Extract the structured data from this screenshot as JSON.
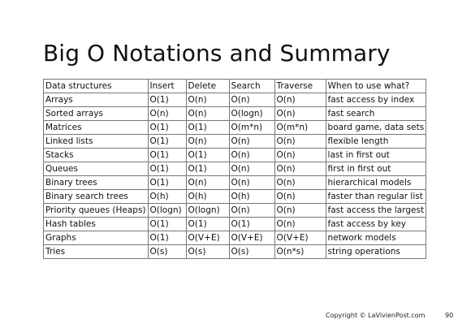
{
  "slide": {
    "title": "Big O Notations and Summary",
    "copyright": "Copyright © LaVivienPost.com",
    "page_number": "90"
  },
  "table": {
    "headers": [
      "Data structures",
      "Insert",
      "Delete",
      "Search",
      "Traverse",
      "When to use what?"
    ],
    "rows": [
      [
        "Arrays",
        "O(1)",
        "O(n)",
        "O(n)",
        "O(n)",
        "fast access by index"
      ],
      [
        "Sorted arrays",
        "O(n)",
        "O(n)",
        "O(logn)",
        "O(n)",
        "fast search"
      ],
      [
        "Matrices",
        "O(1)",
        "O(1)",
        "O(m*n)",
        "O(m*n)",
        "board game, data sets"
      ],
      [
        "Linked lists",
        "O(1)",
        "O(n)",
        "O(n)",
        "O(n)",
        "flexible length"
      ],
      [
        "Stacks",
        "O(1)",
        "O(1)",
        "O(n)",
        "O(n)",
        "last in first out"
      ],
      [
        "Queues",
        "O(1)",
        "O(1)",
        "O(n)",
        "O(n)",
        "first in first out"
      ],
      [
        "Binary trees",
        "O(1)",
        "O(n)",
        "O(n)",
        "O(n)",
        "hierarchical models"
      ],
      [
        "Binary search trees",
        "O(h)",
        "O(h)",
        "O(h)",
        "O(n)",
        "faster than regular list"
      ],
      [
        "Priority queues (Heaps)",
        "O(logn)",
        "O(logn)",
        "O(n)",
        "O(n)",
        "fast access the largest"
      ],
      [
        "Hash tables",
        "O(1)",
        "O(1)",
        "O(1)",
        "O(n)",
        "fast access by key"
      ],
      [
        "Graphs",
        "O(1)",
        "O(V+E)",
        "O(V+E)",
        "O(V+E)",
        "network models"
      ],
      [
        "Tries",
        "O(s)",
        "O(s)",
        "O(s)",
        "O(n*s)",
        "string operations"
      ]
    ]
  }
}
